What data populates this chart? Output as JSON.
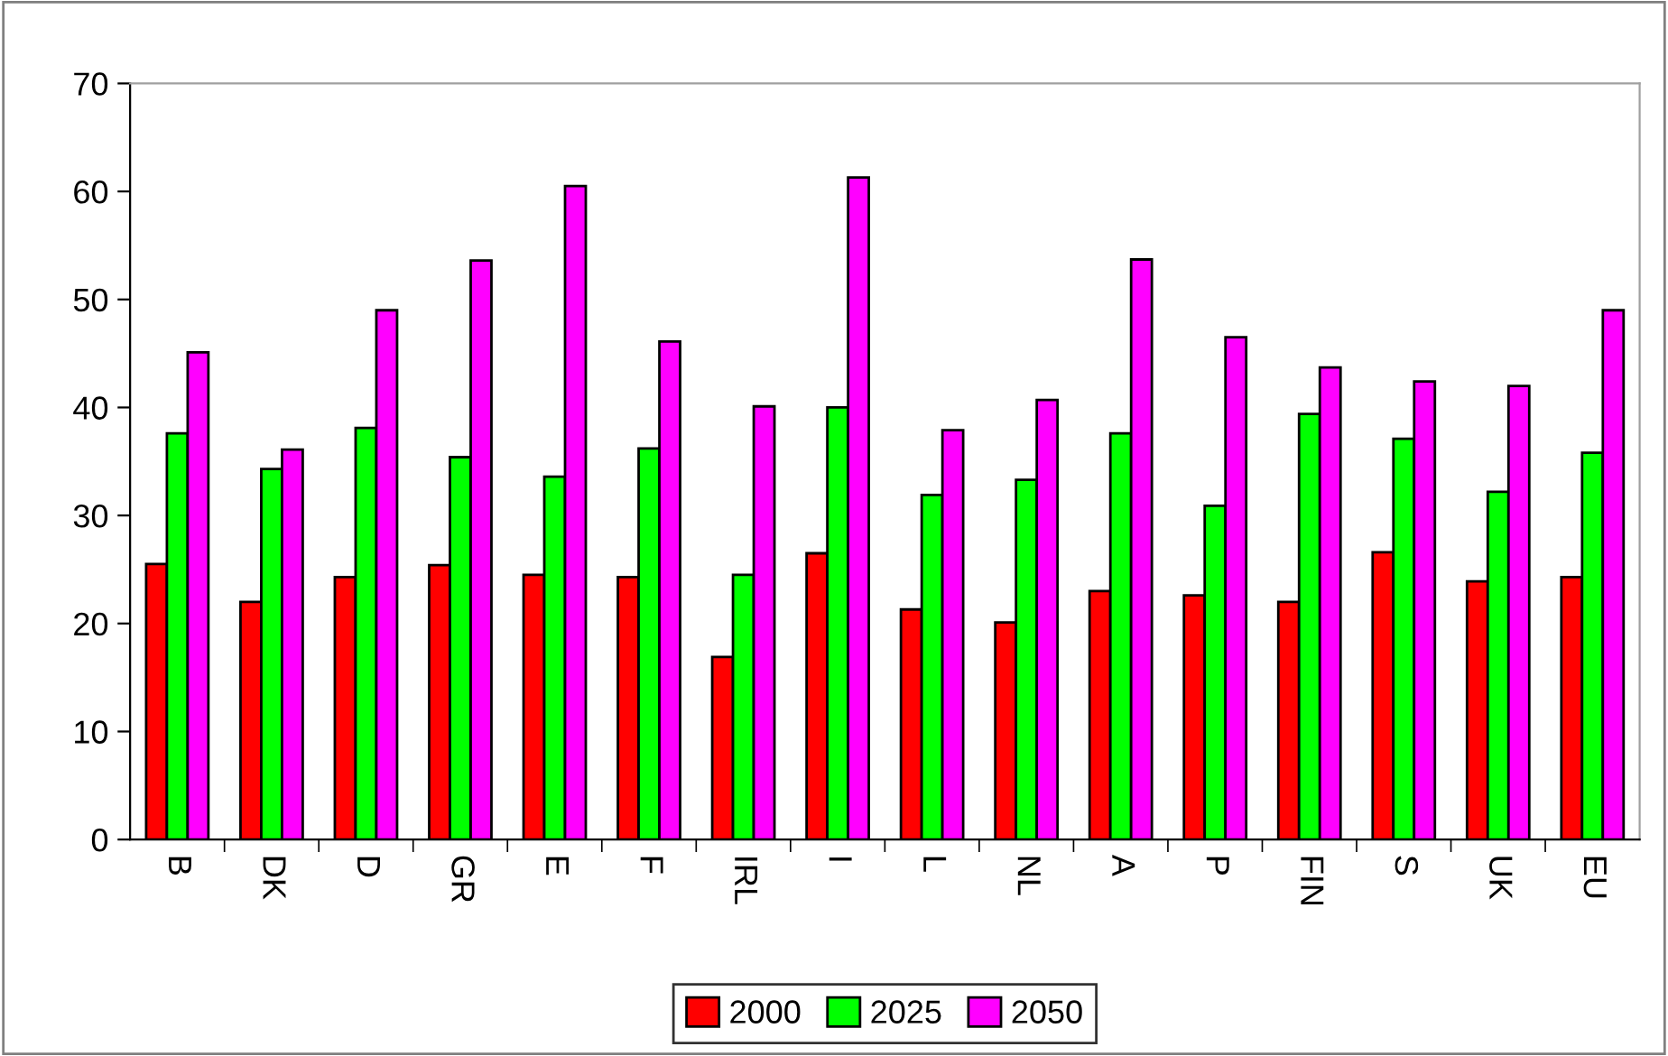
{
  "chart_data": {
    "type": "bar",
    "categories": [
      "B",
      "DK",
      "D",
      "GR",
      "E",
      "F",
      "IRL",
      "I",
      "L",
      "NL",
      "A",
      "P",
      "FIN",
      "S",
      "UK",
      "EU"
    ],
    "series": [
      {
        "name": "2000",
        "color": "#ff0000",
        "values": [
          25.5,
          22.0,
          24.3,
          25.4,
          24.5,
          24.3,
          16.9,
          26.5,
          21.3,
          20.1,
          23.0,
          22.6,
          22.0,
          26.6,
          23.9,
          24.3
        ]
      },
      {
        "name": "2025",
        "color": "#00ff00",
        "values": [
          37.6,
          34.3,
          38.1,
          35.4,
          33.6,
          36.2,
          24.5,
          40.0,
          31.9,
          33.3,
          37.6,
          30.9,
          39.4,
          37.1,
          32.2,
          35.8
        ]
      },
      {
        "name": "2050",
        "color": "#ff00ff",
        "values": [
          45.1,
          36.1,
          49.0,
          53.6,
          60.5,
          46.1,
          40.1,
          61.3,
          37.9,
          40.7,
          53.7,
          46.5,
          43.7,
          42.4,
          42.0,
          49.0
        ]
      }
    ],
    "ylim": [
      0,
      70
    ],
    "yticks": [
      0,
      10,
      20,
      30,
      40,
      50,
      60,
      70
    ],
    "grid": false,
    "legend": "bottom"
  }
}
